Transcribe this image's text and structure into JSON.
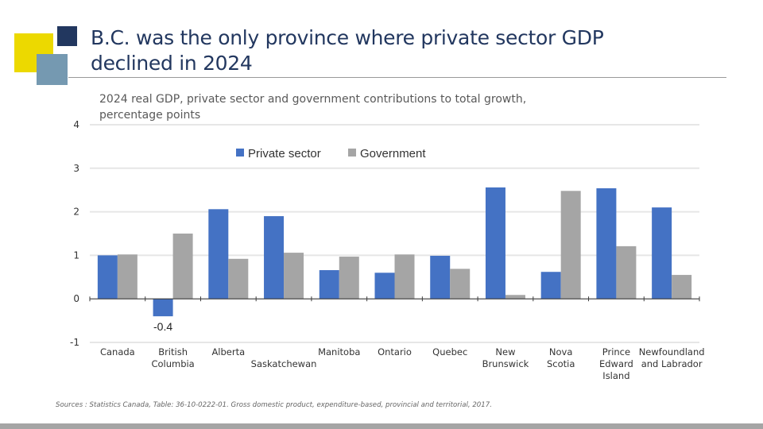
{
  "slide": {
    "title_line1": "B.C. was the only province where private sector GDP",
    "title_line2": "declined in 2024",
    "source": "Sources : Statistics Canada, Table: 36-10-0222-01. Gross domestic product, expenditure-based, provincial and territorial, 2017.",
    "colors": {
      "accent_yellow": "#ecd900",
      "accent_navy": "#22375f",
      "accent_steel": "#7599b1",
      "footer_bar": "#a5a5a5"
    }
  },
  "chart_data": {
    "type": "bar",
    "title": "2024 real GDP, private sector and government contributions to total growth,",
    "title_line2": "percentage points",
    "xlabel": "",
    "ylabel": "",
    "ylim": [
      -1,
      4
    ],
    "yticks": [
      -1,
      0,
      1,
      2,
      3,
      4
    ],
    "grid": true,
    "legend_position": "top-center",
    "categories": [
      [
        "Canada"
      ],
      [
        "British",
        "Columbia"
      ],
      [
        "Alberta"
      ],
      [
        "",
        "Saskatchewan"
      ],
      [
        "Manitoba"
      ],
      [
        "Ontario"
      ],
      [
        "Quebec"
      ],
      [
        "New",
        "Brunswick"
      ],
      [
        "Nova",
        "Scotia"
      ],
      [
        "Prince",
        "Edward",
        "Island"
      ],
      [
        "Newfoundland",
        "and Labrador"
      ]
    ],
    "series": [
      {
        "name": "Private sector",
        "color": "#4472c4",
        "values": [
          1.0,
          -0.4,
          2.06,
          1.9,
          0.66,
          0.6,
          0.99,
          2.56,
          0.62,
          2.54,
          2.1
        ]
      },
      {
        "name": "Government",
        "color": "#a5a5a5",
        "values": [
          1.02,
          1.5,
          0.92,
          1.06,
          0.97,
          1.02,
          0.69,
          0.09,
          2.48,
          1.21,
          0.55
        ]
      }
    ],
    "data_labels": [
      {
        "series": 0,
        "index": 1,
        "text": "-0.4"
      }
    ]
  }
}
